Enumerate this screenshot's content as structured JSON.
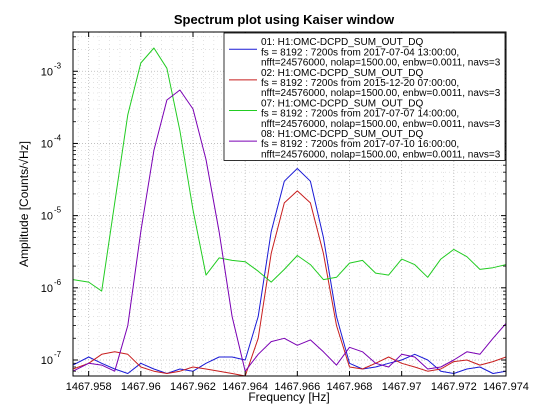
{
  "chart_data": {
    "type": "line",
    "title": "Spectrum plot using Kaiser window",
    "xlabel": "Frequency [Hz]",
    "ylabel": "Amplitude [Counts/√Hz]",
    "x_scale": "linear",
    "y_scale": "log",
    "xlim": [
      1467.9574,
      1467.974
    ],
    "ylim": [
      6e-08,
      0.0035
    ],
    "grid": true,
    "legend_position": "top-right",
    "x_ticks": [
      {
        "value": 1467.958,
        "label": "1467.958"
      },
      {
        "value": 1467.96,
        "label": "1467.96"
      },
      {
        "value": 1467.962,
        "label": "1467.962"
      },
      {
        "value": 1467.964,
        "label": "1467.964"
      },
      {
        "value": 1467.966,
        "label": "1467.966"
      },
      {
        "value": 1467.968,
        "label": "1467.968"
      },
      {
        "value": 1467.97,
        "label": "1467.97"
      },
      {
        "value": 1467.972,
        "label": "1467.972"
      },
      {
        "value": 1467.974,
        "label": "1467.974"
      }
    ],
    "y_ticks": [
      {
        "value": 1e-07,
        "base": "10",
        "exp": "-7"
      },
      {
        "value": 1e-06,
        "base": "10",
        "exp": "-6"
      },
      {
        "value": 1e-05,
        "base": "10",
        "exp": "-5"
      },
      {
        "value": 0.0001,
        "base": "10",
        "exp": "-4"
      },
      {
        "value": 0.001,
        "base": "10",
        "exp": "-3"
      }
    ],
    "series": [
      {
        "legend": [
          "01: H1:OMC-DCPD_SUM_OUT_DQ",
          "fs = 8192 : 7200s from 2017-07-04 13:00:00,",
          "nfft=24576000, nolap=1500.00, enbw=0.0011, navs=3"
        ],
        "color": "#1a1ad6",
        "x": [
          1467.9574,
          1467.958,
          1467.9585,
          1467.959,
          1467.9595,
          1467.96,
          1467.9605,
          1467.961,
          1467.9615,
          1467.962,
          1467.9625,
          1467.963,
          1467.9635,
          1467.964,
          1467.9645,
          1467.965,
          1467.9655,
          1467.966,
          1467.9665,
          1467.967,
          1467.9675,
          1467.968,
          1467.9685,
          1467.969,
          1467.9695,
          1467.97,
          1467.9705,
          1467.971,
          1467.9715,
          1467.972,
          1467.9725,
          1467.973,
          1467.9735,
          1467.974
        ],
        "y": [
          8.5e-08,
          1.1e-07,
          9e-08,
          7.5e-08,
          6.5e-08,
          9e-08,
          7.5e-08,
          6.5e-08,
          7.5e-08,
          7e-08,
          9e-08,
          1.1e-07,
          1.1e-07,
          1e-07,
          4e-07,
          6e-06,
          3e-05,
          4.5e-05,
          3e-05,
          5e-06,
          4e-07,
          9e-08,
          7.5e-08,
          8e-08,
          9e-08,
          1e-07,
          1.2e-07,
          1e-07,
          7e-08,
          6.5e-08,
          7.5e-08,
          8e-08,
          6.5e-08,
          7e-08
        ]
      },
      {
        "legend": [
          "02: H1:OMC-DCPD_SUM_OUT_DQ",
          "fs = 8192 : 7200s from 2015-12-20 07:00:00,",
          "nfft=24576000, nolap=1500.00, enbw=0.0011, navs=3"
        ],
        "color": "#c81e1e",
        "x": [
          1467.9574,
          1467.958,
          1467.9585,
          1467.959,
          1467.9595,
          1467.96,
          1467.9605,
          1467.961,
          1467.9615,
          1467.962,
          1467.9625,
          1467.963,
          1467.9635,
          1467.964,
          1467.9645,
          1467.965,
          1467.9655,
          1467.966,
          1467.9665,
          1467.967,
          1467.9675,
          1467.968,
          1467.9685,
          1467.969,
          1467.9695,
          1467.97,
          1467.9705,
          1467.971,
          1467.9715,
          1467.972,
          1467.9725,
          1467.973,
          1467.9735,
          1467.974
        ],
        "y": [
          7.5e-08,
          9e-08,
          1.2e-07,
          1.3e-07,
          1.2e-07,
          8e-08,
          7e-08,
          6.5e-08,
          7e-08,
          8e-08,
          7.5e-08,
          7e-08,
          6.5e-08,
          6e-08,
          2e-07,
          3e-06,
          1.5e-05,
          2.2e-05,
          1.5e-05,
          3e-06,
          3e-07,
          8e-08,
          7.5e-08,
          9e-08,
          1.1e-07,
          9e-08,
          8e-08,
          7e-08,
          7.5e-08,
          9.5e-08,
          1e-07,
          8.5e-08,
          9.5e-08,
          1.1e-07
        ]
      },
      {
        "legend": [
          "07: H1:OMC-DCPD_SUM_OUT_DQ",
          "fs = 8192 : 7200s from 2017-07-07 14:00:00,",
          "nfft=24576000, nolap=1500.00, enbw=0.0011, navs=3"
        ],
        "color": "#22cc22",
        "x": [
          1467.9574,
          1467.958,
          1467.9585,
          1467.959,
          1467.9595,
          1467.96,
          1467.9605,
          1467.961,
          1467.9615,
          1467.962,
          1467.9625,
          1467.963,
          1467.9635,
          1467.964,
          1467.9645,
          1467.965,
          1467.9655,
          1467.966,
          1467.9665,
          1467.967,
          1467.9675,
          1467.968,
          1467.9685,
          1467.969,
          1467.9695,
          1467.97,
          1467.9705,
          1467.971,
          1467.9715,
          1467.972,
          1467.9725,
          1467.973,
          1467.9735,
          1467.974
        ],
        "y": [
          1.3e-06,
          1.2e-06,
          9e-07,
          1.5e-05,
          0.00025,
          0.0013,
          0.0021,
          0.0011,
          0.00015,
          1.2e-05,
          1.5e-06,
          2.6e-06,
          2.4e-06,
          2.3e-06,
          1.7e-06,
          1.2e-06,
          1.8e-06,
          2.8e-06,
          2.1e-06,
          1.3e-06,
          1.4e-06,
          2.2e-06,
          2.4e-06,
          1.6e-06,
          1.5e-06,
          2.5e-06,
          2.1e-06,
          1.4e-06,
          2.5e-06,
          3.4e-06,
          2.7e-06,
          1.8e-06,
          1.9e-06,
          2.1e-06
        ]
      },
      {
        "legend": [
          "08: H1:OMC-DCPD_SUM_OUT_DQ",
          "fs = 8192 : 7200s from 2017-07-10 16:00:00,",
          "nfft=24576000, nolap=1500.00, enbw=0.0011, navs=3"
        ],
        "color": "#7a00b4",
        "x": [
          1467.9574,
          1467.958,
          1467.9585,
          1467.959,
          1467.9595,
          1467.96,
          1467.9605,
          1467.961,
          1467.9615,
          1467.962,
          1467.9625,
          1467.963,
          1467.9635,
          1467.964,
          1467.9645,
          1467.965,
          1467.9655,
          1467.966,
          1467.9665,
          1467.967,
          1467.9675,
          1467.968,
          1467.9685,
          1467.969,
          1467.9695,
          1467.97,
          1467.9705,
          1467.971,
          1467.9715,
          1467.972,
          1467.9725,
          1467.973,
          1467.9735,
          1467.974
        ],
        "y": [
          7e-08,
          9e-08,
          8.5e-08,
          7e-08,
          3e-07,
          6e-06,
          8e-05,
          0.0004,
          0.00055,
          0.0003,
          6e-05,
          6e-06,
          4e-07,
          7e-08,
          1.2e-07,
          1.8e-07,
          2e-07,
          1.6e-07,
          1.9e-07,
          1.3e-07,
          8.5e-08,
          1.5e-07,
          1.3e-07,
          9e-08,
          8e-08,
          1.2e-07,
          1.1e-07,
          7.5e-08,
          8e-08,
          1e-07,
          1.3e-07,
          1.2e-07,
          2e-07,
          3.2e-07
        ]
      }
    ]
  }
}
